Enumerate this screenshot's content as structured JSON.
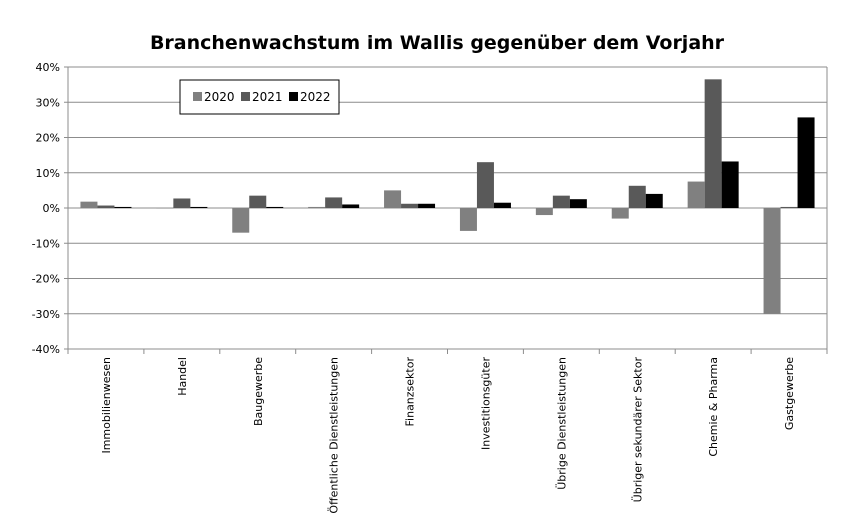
{
  "chart_data": {
    "type": "bar",
    "title": "Branchenwachstum im Wallis gegenüber dem Vorjahr",
    "xlabel": "",
    "ylabel": "",
    "ylim": [
      -40,
      40
    ],
    "yticks": [
      40,
      30,
      20,
      10,
      0,
      -10,
      -20,
      -30,
      -40
    ],
    "ytick_labels": [
      "40%",
      "30%",
      "20%",
      "10%",
      "0%",
      "-10%",
      "-20%",
      "-30%",
      "-40%"
    ],
    "grid": true,
    "legend_position": "top-left",
    "categories": [
      "Immobilienwesen",
      "Handel",
      "Baugewerbe",
      "Öffentliche Dienstleistungen",
      "Finanzsektor",
      "Investitionsgüter",
      "Übrige Dienstleistungen",
      "Übriger sekundärer Sektor",
      "Chemie & Pharma",
      "Gastgewerbe"
    ],
    "series": [
      {
        "name": "2020",
        "color": "#808080",
        "values": [
          1.8,
          0.0,
          -7.0,
          0.3,
          5.0,
          -6.5,
          -2.0,
          -3.0,
          7.5,
          -30.0
        ]
      },
      {
        "name": "2021",
        "color": "#595959",
        "values": [
          0.7,
          2.7,
          3.5,
          3.0,
          1.2,
          13.0,
          3.5,
          6.3,
          36.5,
          0.3
        ]
      },
      {
        "name": "2022",
        "color": "#000000",
        "values": [
          0.3,
          0.3,
          0.3,
          1.0,
          1.2,
          1.5,
          2.5,
          4.0,
          13.2,
          25.7
        ]
      }
    ]
  }
}
